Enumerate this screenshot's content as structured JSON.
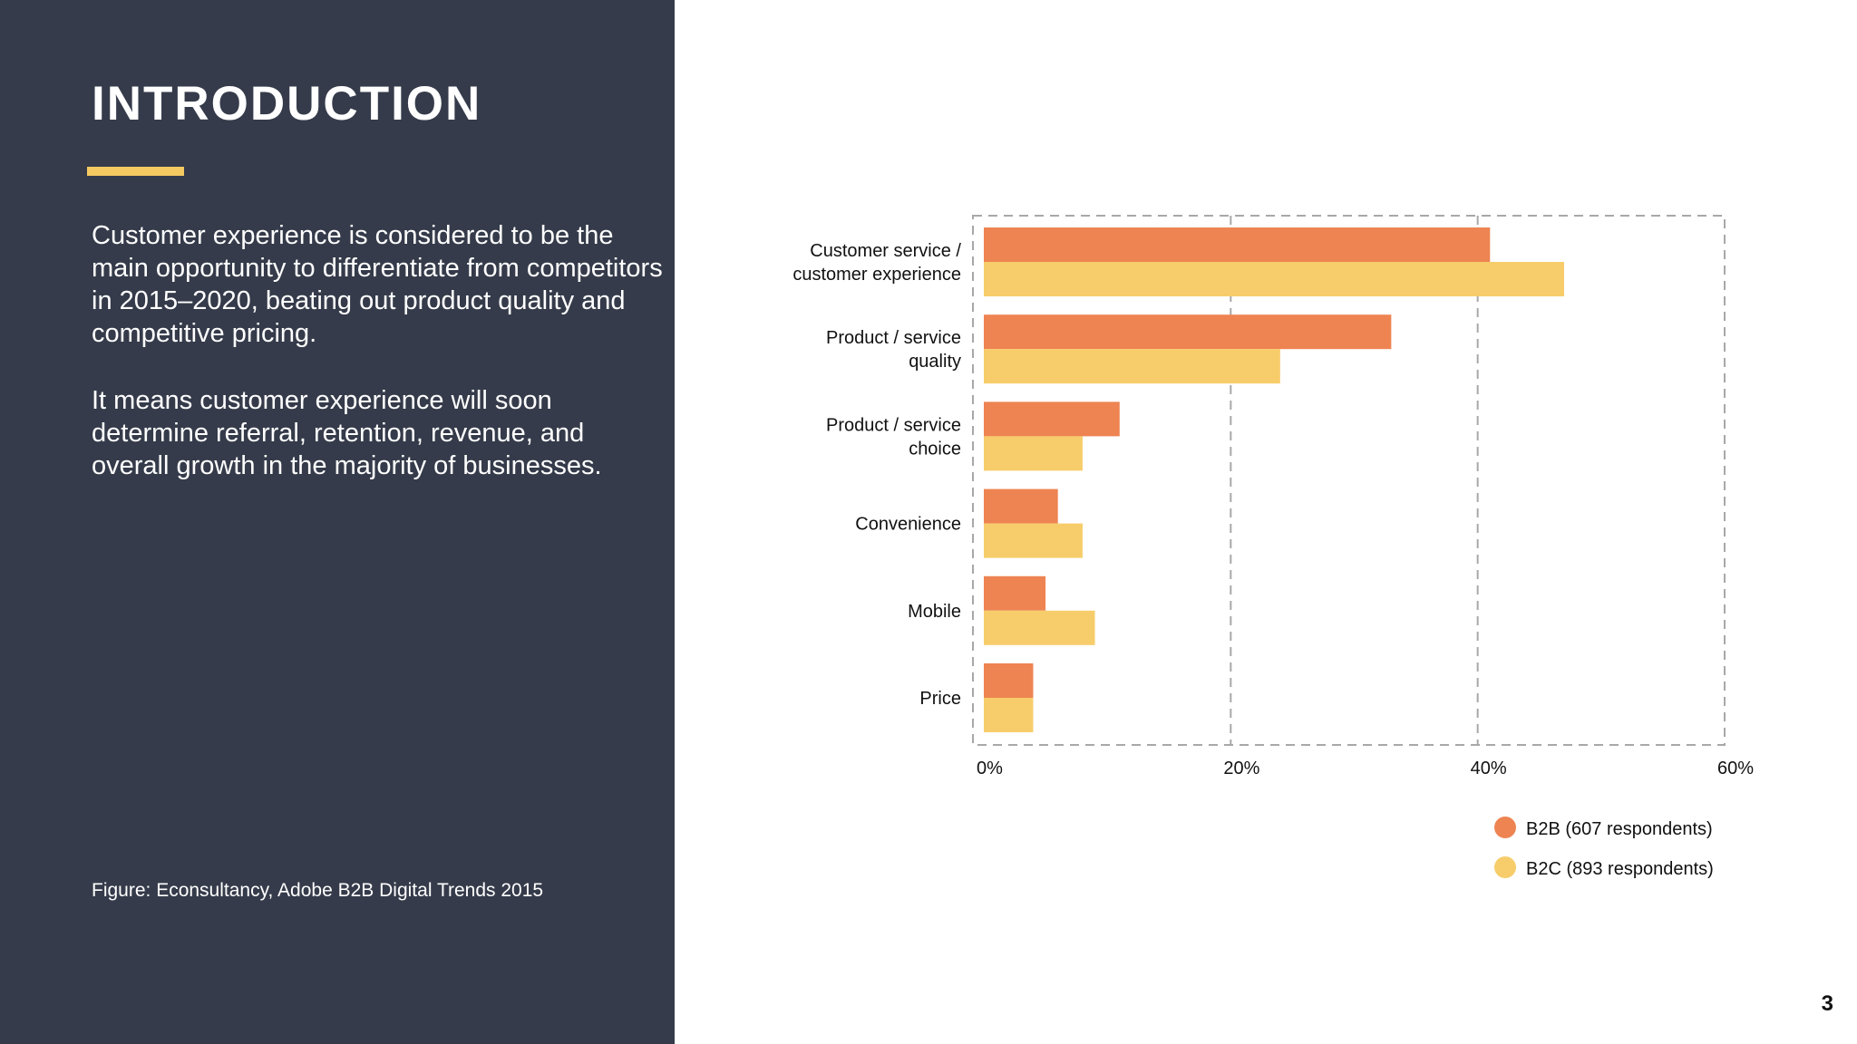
{
  "slide": {
    "title": "INTRODUCTION",
    "paragraphs": [
      "Customer experience is considered to be the main opportunity to differentiate from competitors in 2015–2020, beating out product quality and competitive pricing.",
      "It means customer experience will soon determine referral, retention, revenue, and overall growth in the majority of businesses."
    ],
    "source": "Figure: Econsultancy, Adobe B2B Digital Trends 2015",
    "page_number": "3"
  },
  "colors": {
    "panel": "#353b4a",
    "accent": "#f5c961",
    "b2b": "#ee8452",
    "b2c": "#f7cd6b",
    "grid": "#a8a8a8"
  },
  "chart_data": {
    "type": "bar",
    "orientation": "horizontal",
    "categories": [
      [
        "Customer service /",
        "customer experience"
      ],
      [
        "Product / service",
        "quality"
      ],
      [
        "Product / service",
        "choice"
      ],
      [
        "Convenience"
      ],
      [
        "Mobile"
      ],
      [
        "Price"
      ]
    ],
    "series": [
      {
        "name": "B2B (607 respondents)",
        "color": "#ee8452",
        "values": [
          41,
          33,
          11,
          6,
          5,
          4
        ]
      },
      {
        "name": "B2C (893 respondents)",
        "color": "#f7cd6b",
        "values": [
          47,
          24,
          8,
          8,
          9,
          4
        ]
      }
    ],
    "x_ticks": [
      "0%",
      "20%",
      "40%",
      "60%"
    ],
    "xlim": [
      0,
      60
    ],
    "grid": true,
    "legend_position": "bottom-right",
    "title": "",
    "xlabel": "",
    "ylabel": ""
  }
}
